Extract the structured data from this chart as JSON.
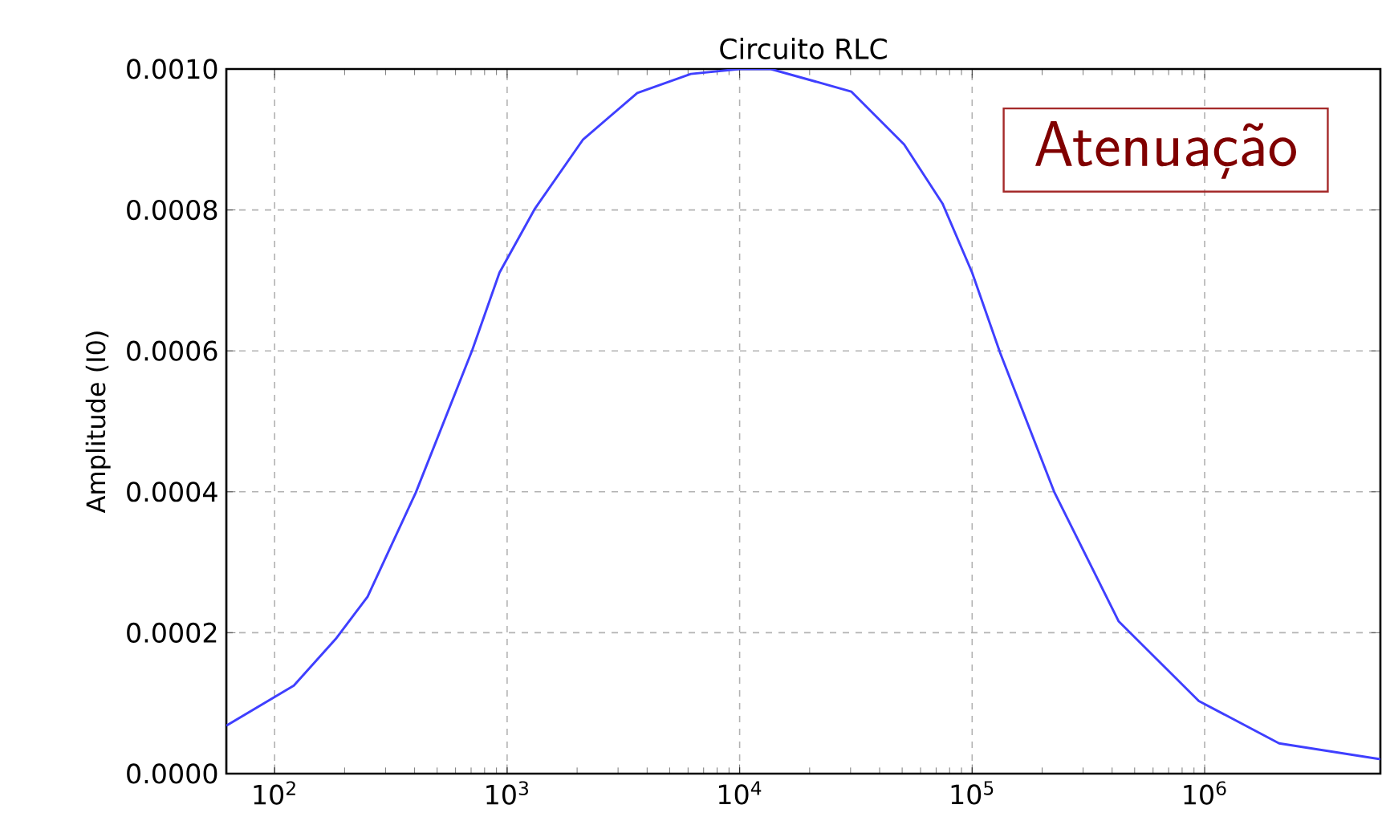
{
  "chart_data": {
    "type": "line",
    "title": "Circuito RLC",
    "ylabel": "Amplitude (I0)",
    "annotations": [
      "Atenuação"
    ],
    "log": "x",
    "grid": true,
    "xlim": [
      62,
      5700000
    ],
    "ylim": [
      0,
      0.001
    ],
    "xticks": [
      {
        "value": 100,
        "label": "10$^{2}$"
      },
      {
        "value": 1000,
        "label": "10$^{3}$"
      },
      {
        "value": 10000,
        "label": "10$^{4}$"
      },
      {
        "value": 100000,
        "label": "10$^{5}$"
      },
      {
        "value": 1000000,
        "label": "10$^{6}$"
      }
    ],
    "yticks": [
      {
        "value": 0,
        "label": "0.0000"
      },
      {
        "value": 0.0002,
        "label": "0.0002"
      },
      {
        "value": 0.0004,
        "label": "0.0004"
      },
      {
        "value": 0.0006,
        "label": "0.0006"
      },
      {
        "value": 0.0008,
        "label": "0.0008"
      },
      {
        "value": 0.001,
        "label": "0.0010"
      }
    ],
    "series": [
      {
        "color": "#3f3fff",
        "x": [
          62,
          121,
          183,
          251,
          405,
          708,
          927,
          1318,
          2122,
          3630,
          6170,
          10000,
          13600,
          30200,
          51000,
          74600,
          100000,
          132000,
          226000,
          427000,
          944000,
          2090000,
          5700000
        ],
        "values": [
          6.8e-05,
          0.000125,
          0.000191,
          0.000251,
          0.000399,
          0.000601,
          0.000711,
          0.000802,
          0.0009,
          0.000966,
          0.000993,
          0.001,
          0.001,
          0.000968,
          0.000893,
          0.000809,
          0.000711,
          0.000597,
          0.000399,
          0.000216,
          0.000103,
          4.3e-05,
          2.05e-05
        ]
      }
    ]
  }
}
